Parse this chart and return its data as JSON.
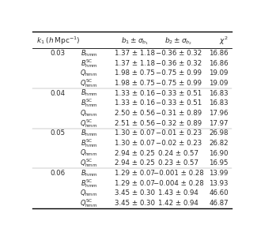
{
  "col_headers": [
    "$k_1\\;(h\\,\\mathrm{Mpc}^{-1})$",
    "$b_1 \\pm \\sigma_{b_1}$",
    "$b_2 \\pm \\sigma_{b_2}$",
    "$\\chi^2$"
  ],
  "rows": [
    {
      "k": "0.03",
      "label": "$B_{\\mathrm{hmm}}$",
      "b1": "1.37 ± 1.18",
      "b2": "−0.36 ± 0.32",
      "chi2": "16.86"
    },
    {
      "k": "",
      "label": "$B^{\\mathrm{SC}}_{\\mathrm{hmm}}$",
      "b1": "1.37 ± 1.18",
      "b2": "−0.36 ± 0.32",
      "chi2": "16.86"
    },
    {
      "k": "",
      "label": "$Q_{\\mathrm{hmm}}$",
      "b1": "1.98 ± 0.75",
      "b2": "−0.75 ± 0.99",
      "chi2": "19.09"
    },
    {
      "k": "",
      "label": "$Q^{\\mathrm{SC}}_{\\mathrm{hmm}}$",
      "b1": "1.98 ± 0.75",
      "b2": "−0.75 ± 0.99",
      "chi2": "19.09"
    },
    {
      "k": "0.04",
      "label": "$B_{\\mathrm{hmm}}$",
      "b1": "1.33 ± 0.16",
      "b2": "−0.33 ± 0.51",
      "chi2": "16.83"
    },
    {
      "k": "",
      "label": "$B^{\\mathrm{SC}}_{\\mathrm{hmm}}$",
      "b1": "1.33 ± 0.16",
      "b2": "−0.33 ± 0.51",
      "chi2": "16.83"
    },
    {
      "k": "",
      "label": "$Q_{\\mathrm{hmm}}$",
      "b1": "2.50 ± 0.56",
      "b2": "−0.31 ± 0.89",
      "chi2": "17.96"
    },
    {
      "k": "",
      "label": "$Q^{\\mathrm{SC}}_{\\mathrm{hmm}}$",
      "b1": "2.51 ± 0.56",
      "b2": "−0.32 ± 0.89",
      "chi2": "17.97"
    },
    {
      "k": "0.05",
      "label": "$B_{\\mathrm{hmm}}$",
      "b1": "1.30 ± 0.07",
      "b2": "−0.01 ± 0.23",
      "chi2": "26.98"
    },
    {
      "k": "",
      "label": "$B^{\\mathrm{SC}}_{\\mathrm{hmm}}$",
      "b1": "1.30 ± 0.07",
      "b2": "−0.02 ± 0.23",
      "chi2": "26.82"
    },
    {
      "k": "",
      "label": "$Q_{\\mathrm{hmm}}$",
      "b1": "2.94 ± 0.25",
      "b2": "0.24 ± 0.57",
      "chi2": "16.90"
    },
    {
      "k": "",
      "label": "$Q^{\\mathrm{SC}}_{\\mathrm{hmm}}$",
      "b1": "2.94 ± 0.25",
      "b2": "0.23 ± 0.57",
      "chi2": "16.95"
    },
    {
      "k": "0.06",
      "label": "$B_{\\mathrm{hmm}}$",
      "b1": "1.29 ± 0.07",
      "b2": "−0.001 ± 0.28",
      "chi2": "13.99"
    },
    {
      "k": "",
      "label": "$B^{\\mathrm{SC}}_{\\mathrm{hmm}}$",
      "b1": "1.29 ± 0.07",
      "b2": "−0.004 ± 0.28",
      "chi2": "13.93"
    },
    {
      "k": "",
      "label": "$Q_{\\mathrm{hmm}}$",
      "b1": "3.45 ± 0.30",
      "b2": "1.43 ± 0.94",
      "chi2": "46.60"
    },
    {
      "k": "",
      "label": "$Q^{\\mathrm{SC}}_{\\mathrm{hmm}}$",
      "b1": "3.45 ± 0.30",
      "b2": "1.42 ± 0.94",
      "chi2": "46.87"
    }
  ],
  "group_sep_after": [
    3,
    7,
    11
  ],
  "bg_color": "#ffffff",
  "text_color": "#2a2a2a",
  "font_size": 6.2,
  "header_font_size": 6.5
}
